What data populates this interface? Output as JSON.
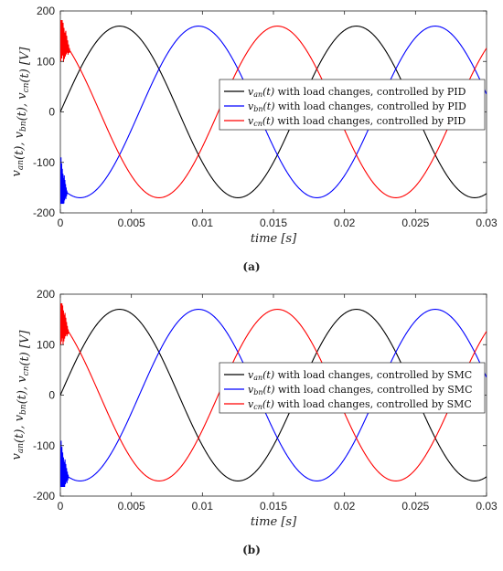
{
  "colors": {
    "van": "#000000",
    "vbn": "#0000ff",
    "vcn": "#ff0000"
  },
  "chart_data": [
    {
      "type": "line",
      "caption": "(a)",
      "xlabel": "time  [s]",
      "ylabel": "v_an(t), v_bn(t), v_cn(t)  [V]",
      "xlim": [
        0,
        0.03
      ],
      "ylim": [
        -200,
        200
      ],
      "x_ticks": [
        "0",
        "0.005",
        "0.01",
        "0.015",
        "0.02",
        "0.025",
        "0.03"
      ],
      "y_ticks": [
        "-200",
        "-100",
        "0",
        "100",
        "200"
      ],
      "grid": false,
      "legend_position": "right",
      "amplitude": 170,
      "frequency_hz": 60,
      "series": [
        {
          "name": "v_an(t) with load changes, controlled by PID",
          "legend_text": " with load changes, controlled by PID",
          "phase_deg": 0,
          "color": "#000000"
        },
        {
          "name": "v_bn(t) with load changes, controlled by PID",
          "legend_text": " with load changes, controlled by PID",
          "phase_deg": -120,
          "color": "#0000ff",
          "transient": "oscillation between about -40 and -180 for t < 0.0005"
        },
        {
          "name": "v_cn(t) with load changes, controlled by PID",
          "legend_text": " with load changes, controlled by PID",
          "phase_deg": 120,
          "color": "#ff0000",
          "transient": "oscillation between about 180 and 50 for t < 0.0007"
        }
      ]
    },
    {
      "type": "line",
      "caption": "(b)",
      "xlabel": "time  [s]",
      "ylabel": "v_an(t), v_bn(t), v_cn(t)  [V]",
      "xlim": [
        0,
        0.03
      ],
      "ylim": [
        -200,
        200
      ],
      "x_ticks": [
        "0",
        "0.005",
        "0.01",
        "0.015",
        "0.02",
        "0.025",
        "0.03"
      ],
      "y_ticks": [
        "-200",
        "-100",
        "0",
        "100",
        "200"
      ],
      "grid": false,
      "legend_position": "right",
      "amplitude": 170,
      "frequency_hz": 60,
      "series": [
        {
          "name": "v_an(t) with load changes, controlled by SMC",
          "legend_text": " with load changes, controlled by SMC",
          "phase_deg": 0,
          "color": "#000000"
        },
        {
          "name": "v_bn(t) with load changes, controlled by SMC",
          "legend_text": " with load changes, controlled by SMC",
          "phase_deg": -120,
          "color": "#0000ff",
          "transient": "oscillation between about -50 and -180 for t < 0.0006"
        },
        {
          "name": "v_cn(t) with load changes, controlled by SMC",
          "legend_text": " with load changes, controlled by SMC",
          "phase_deg": 120,
          "color": "#ff0000",
          "transient": "oscillation between about 180 and 60 for t < 0.0006"
        }
      ]
    }
  ]
}
